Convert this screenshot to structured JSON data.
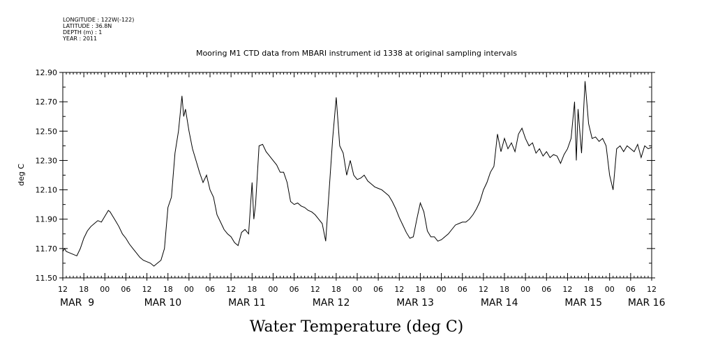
{
  "meta_lines": [
    "LONGITUDE : 122W(-122)",
    "LATITUDE : 36.8N",
    "DEPTH (m) : 1",
    "YEAR : 2011"
  ],
  "chart_data": {
    "type": "line",
    "title": "Mooring M1 CTD data from MBARI instrument id 1338 at original sampling intervals",
    "xlabel": "Water Temperature (deg C)",
    "ylabel": "deg C",
    "xlim_hours": [
      0,
      168
    ],
    "ylim": [
      11.5,
      12.9
    ],
    "yticks": [
      "11.50",
      "11.70",
      "11.90",
      "12.10",
      "12.30",
      "12.50",
      "12.70",
      "12.90"
    ],
    "hour_ticks": [
      "12",
      "18",
      "00",
      "06",
      "12",
      "18",
      "00",
      "06",
      "12",
      "18",
      "00",
      "06",
      "12",
      "18",
      "00",
      "06",
      "12",
      "18",
      "00",
      "06",
      "12",
      "18",
      "00",
      "06",
      "12",
      "18",
      "00",
      "06",
      "12"
    ],
    "day_labels": [
      {
        "label": "MAR  9",
        "hour": 0
      },
      {
        "label": "MAR 10",
        "hour": 24
      },
      {
        "label": "MAR 11",
        "hour": 48
      },
      {
        "label": "MAR 12",
        "hour": 72
      },
      {
        "label": "MAR 13",
        "hour": 96
      },
      {
        "label": "MAR 14",
        "hour": 120
      },
      {
        "label": "MAR 15",
        "hour": 144
      },
      {
        "label": "MAR 16",
        "hour": 162
      }
    ],
    "series": [
      {
        "color": "#000000",
        "points": [
          [
            0,
            11.68
          ],
          [
            0.5,
            11.7
          ],
          [
            1,
            11.68
          ],
          [
            2,
            11.67
          ],
          [
            3,
            11.66
          ],
          [
            4,
            11.65
          ],
          [
            5,
            11.7
          ],
          [
            6,
            11.77
          ],
          [
            7,
            11.82
          ],
          [
            8,
            11.85
          ],
          [
            9,
            11.87
          ],
          [
            10,
            11.89
          ],
          [
            11,
            11.88
          ],
          [
            12,
            11.92
          ],
          [
            13,
            11.96
          ],
          [
            13.5,
            11.95
          ],
          [
            14,
            11.93
          ],
          [
            15,
            11.89
          ],
          [
            16,
            11.85
          ],
          [
            17,
            11.8
          ],
          [
            18,
            11.77
          ],
          [
            19,
            11.73
          ],
          [
            20,
            11.7
          ],
          [
            21,
            11.67
          ],
          [
            22,
            11.64
          ],
          [
            23,
            11.62
          ],
          [
            24,
            11.61
          ],
          [
            25,
            11.6
          ],
          [
            26,
            11.58
          ],
          [
            27,
            11.6
          ],
          [
            28,
            11.62
          ],
          [
            29,
            11.7
          ],
          [
            30,
            11.98
          ],
          [
            31,
            12.05
          ],
          [
            32,
            12.35
          ],
          [
            33,
            12.5
          ],
          [
            34,
            12.74
          ],
          [
            34.5,
            12.6
          ],
          [
            35,
            12.65
          ],
          [
            36,
            12.5
          ],
          [
            37,
            12.38
          ],
          [
            38,
            12.3
          ],
          [
            39,
            12.22
          ],
          [
            40,
            12.15
          ],
          [
            41,
            12.2
          ],
          [
            42,
            12.1
          ],
          [
            43,
            12.05
          ],
          [
            44,
            11.93
          ],
          [
            45,
            11.88
          ],
          [
            46,
            11.83
          ],
          [
            47,
            11.8
          ],
          [
            48,
            11.78
          ],
          [
            49,
            11.74
          ],
          [
            50,
            11.72
          ],
          [
            51,
            11.81
          ],
          [
            52,
            11.83
          ],
          [
            53,
            11.8
          ],
          [
            54,
            12.15
          ],
          [
            54.5,
            11.9
          ],
          [
            55,
            12.0
          ],
          [
            56,
            12.4
          ],
          [
            57,
            12.41
          ],
          [
            58,
            12.36
          ],
          [
            59,
            12.33
          ],
          [
            60,
            12.3
          ],
          [
            61,
            12.27
          ],
          [
            62,
            12.22
          ],
          [
            63,
            12.22
          ],
          [
            64,
            12.15
          ],
          [
            65,
            12.02
          ],
          [
            66,
            12.0
          ],
          [
            67,
            12.01
          ],
          [
            68,
            11.99
          ],
          [
            69,
            11.98
          ],
          [
            70,
            11.96
          ],
          [
            71,
            11.95
          ],
          [
            72,
            11.93
          ],
          [
            73,
            11.9
          ],
          [
            74,
            11.87
          ],
          [
            75,
            11.75
          ],
          [
            76,
            12.1
          ],
          [
            77,
            12.45
          ],
          [
            78,
            12.73
          ],
          [
            79,
            12.4
          ],
          [
            80,
            12.35
          ],
          [
            81,
            12.2
          ],
          [
            82,
            12.3
          ],
          [
            83,
            12.2
          ],
          [
            84,
            12.17
          ],
          [
            85,
            12.18
          ],
          [
            86,
            12.2
          ],
          [
            87,
            12.16
          ],
          [
            88,
            12.14
          ],
          [
            89,
            12.12
          ],
          [
            90,
            12.11
          ],
          [
            91,
            12.1
          ],
          [
            92,
            12.08
          ],
          [
            93,
            12.06
          ],
          [
            94,
            12.02
          ],
          [
            95,
            11.97
          ],
          [
            96,
            11.91
          ],
          [
            97,
            11.86
          ],
          [
            98,
            11.81
          ],
          [
            99,
            11.77
          ],
          [
            100,
            11.78
          ],
          [
            101,
            11.9
          ],
          [
            102,
            12.01
          ],
          [
            103,
            11.95
          ],
          [
            104,
            11.82
          ],
          [
            105,
            11.78
          ],
          [
            106,
            11.78
          ],
          [
            107,
            11.75
          ],
          [
            108,
            11.76
          ],
          [
            109,
            11.78
          ],
          [
            110,
            11.8
          ],
          [
            111,
            11.83
          ],
          [
            112,
            11.86
          ],
          [
            113,
            11.87
          ],
          [
            114,
            11.88
          ],
          [
            115,
            11.88
          ],
          [
            116,
            11.9
          ],
          [
            117,
            11.93
          ],
          [
            118,
            11.97
          ],
          [
            119,
            12.02
          ],
          [
            120,
            12.1
          ],
          [
            121,
            12.15
          ],
          [
            122,
            12.22
          ],
          [
            123,
            12.26
          ],
          [
            124,
            12.48
          ],
          [
            125,
            12.36
          ],
          [
            126,
            12.45
          ],
          [
            127,
            12.38
          ],
          [
            128,
            12.42
          ],
          [
            129,
            12.36
          ],
          [
            130,
            12.48
          ],
          [
            131,
            12.52
          ],
          [
            132,
            12.45
          ],
          [
            133,
            12.4
          ],
          [
            134,
            12.42
          ],
          [
            135,
            12.35
          ],
          [
            136,
            12.38
          ],
          [
            137,
            12.33
          ],
          [
            138,
            12.36
          ],
          [
            139,
            12.32
          ],
          [
            140,
            12.34
          ],
          [
            141,
            12.33
          ],
          [
            142,
            12.28
          ],
          [
            143,
            12.34
          ],
          [
            144,
            12.38
          ],
          [
            145,
            12.45
          ],
          [
            146,
            12.7
          ],
          [
            146.5,
            12.3
          ],
          [
            147,
            12.65
          ],
          [
            148,
            12.35
          ],
          [
            149,
            12.84
          ],
          [
            150,
            12.55
          ],
          [
            151,
            12.45
          ],
          [
            152,
            12.46
          ],
          [
            153,
            12.43
          ],
          [
            154,
            12.45
          ],
          [
            155,
            12.4
          ],
          [
            156,
            12.2
          ],
          [
            157,
            12.1
          ],
          [
            158,
            12.38
          ],
          [
            159,
            12.4
          ],
          [
            160,
            12.36
          ],
          [
            161,
            12.4
          ],
          [
            162,
            12.38
          ],
          [
            163,
            12.36
          ],
          [
            164,
            12.41
          ],
          [
            165,
            12.32
          ],
          [
            166,
            12.4
          ],
          [
            167,
            12.38
          ],
          [
            168,
            12.39
          ]
        ]
      }
    ]
  }
}
